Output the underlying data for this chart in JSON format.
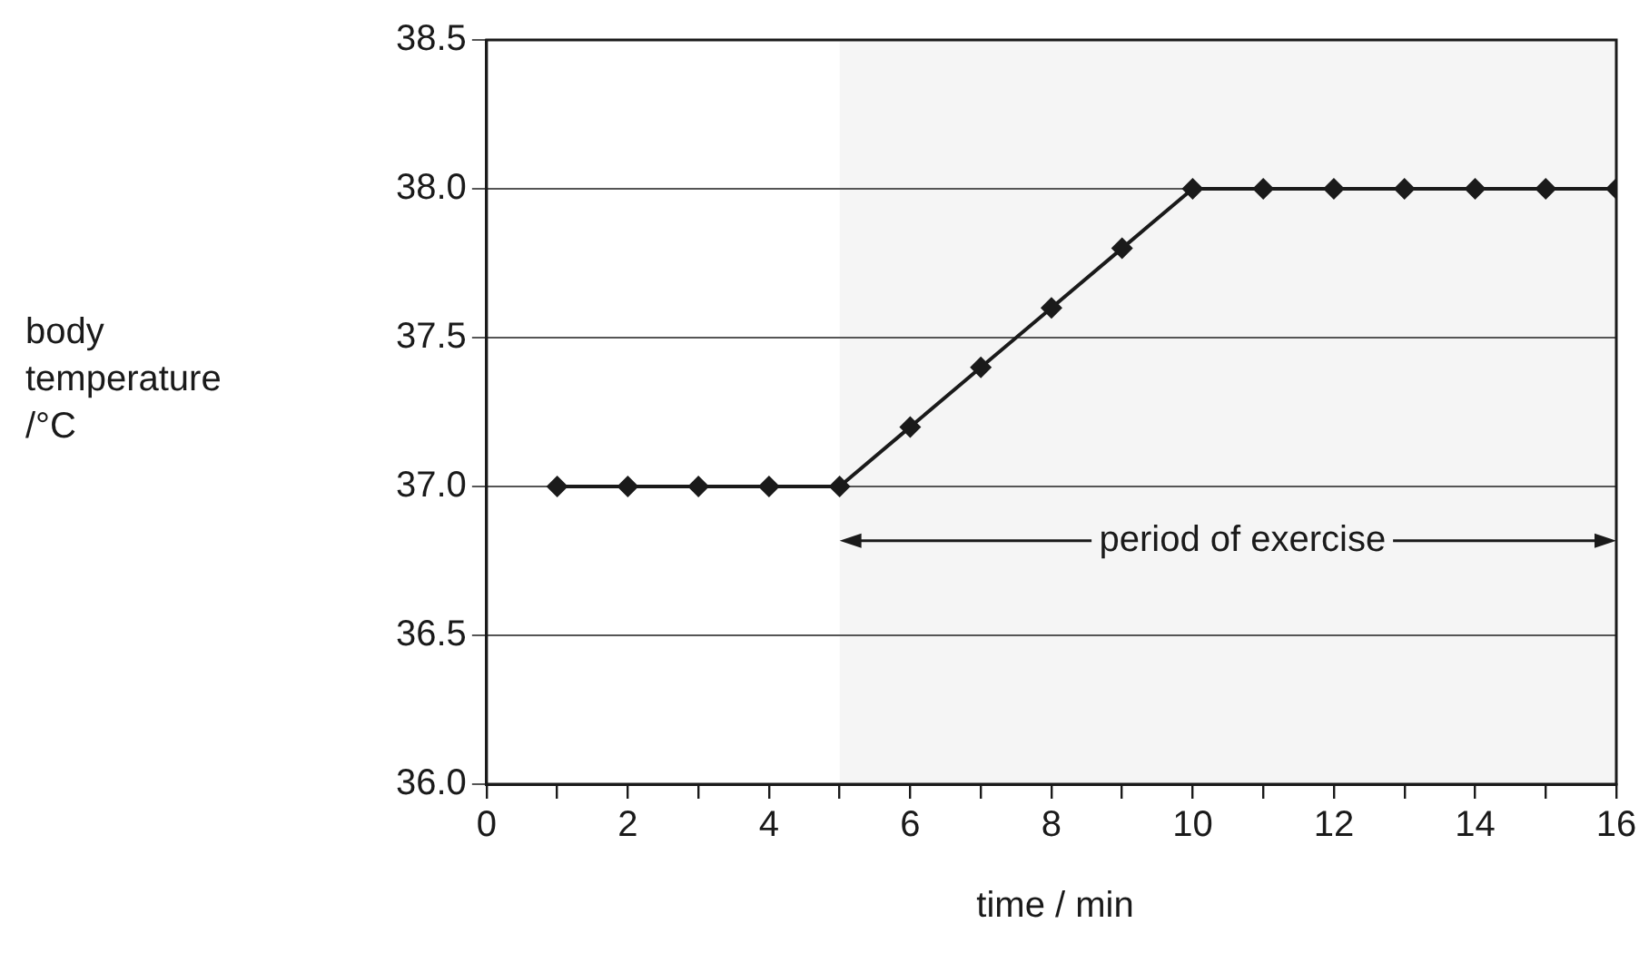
{
  "chart_data": {
    "type": "line",
    "xlabel": "time / min",
    "ylabel": "body temperature /°C",
    "x": [
      1,
      2,
      3,
      4,
      5,
      6,
      7,
      8,
      9,
      10,
      11,
      12,
      13,
      14,
      15,
      16
    ],
    "series": [
      {
        "color": "#1a1a1a",
        "values": [
          37.0,
          37.0,
          37.0,
          37.0,
          37.0,
          37.2,
          37.4,
          37.6,
          37.8,
          38.0,
          38.0,
          38.0,
          38.0,
          38.0,
          38.0,
          38.0
        ]
      }
    ],
    "xlim": [
      0,
      16
    ],
    "xticks": [
      0,
      {
        "value": 1,
        "label": null
      },
      2,
      {
        "value": 3,
        "label": null
      },
      4,
      {
        "value": 5,
        "label": null
      },
      6,
      {
        "value": 7,
        "label": null
      },
      8,
      {
        "value": 9,
        "label": null
      },
      10,
      {
        "value": 11,
        "label": null
      },
      12,
      {
        "value": 13,
        "label": null
      },
      14,
      {
        "value": 15,
        "label": null
      },
      16
    ],
    "ylim": [
      36.0,
      38.5
    ],
    "yticks": [
      {
        "value": 36.0,
        "label": "36.0"
      },
      {
        "value": 36.5,
        "label": "36.5"
      },
      {
        "value": 37.0,
        "label": "37.0"
      },
      {
        "value": 37.5,
        "label": "37.5"
      },
      {
        "value": 38.0,
        "label": "38.0"
      },
      {
        "value": 38.5,
        "label": "38.5"
      }
    ],
    "bands": [
      {
        "axis": "x",
        "from": 5,
        "to": 16,
        "label": "period of exercise",
        "color": "#f5f5f5"
      }
    ],
    "grid": "y",
    "legend": false,
    "marker": "diamond",
    "line_style": "solid"
  }
}
